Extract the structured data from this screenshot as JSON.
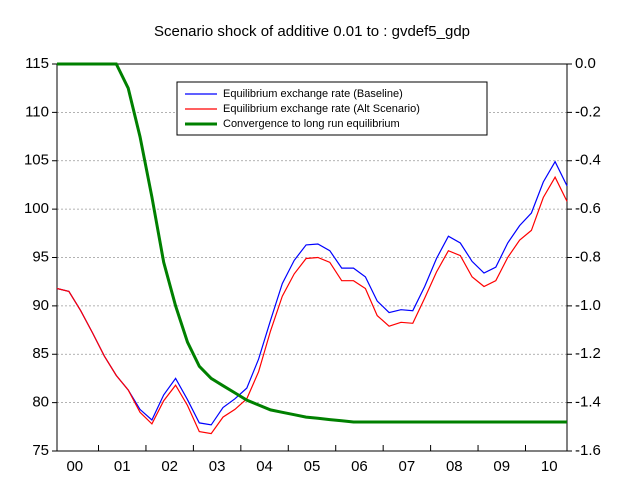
{
  "chart_data": {
    "type": "line",
    "title": "Scenario shock of additive 0.01 to : gvdef5_gdp",
    "categories": [
      "00",
      null,
      null,
      null,
      "01",
      null,
      null,
      null,
      "02",
      null,
      null,
      null,
      "03",
      null,
      null,
      null,
      "04",
      null,
      null,
      null,
      "05",
      null,
      null,
      null,
      "06",
      null,
      null,
      null,
      "07",
      null,
      null,
      null,
      "08",
      null,
      null,
      null,
      "09",
      null,
      null,
      null,
      "10",
      null,
      null,
      null
    ],
    "series": [
      {
        "name": "Equilibrium exchange rate (Baseline)",
        "color": "#0000ff",
        "values": [
          91.8,
          91.5,
          89.5,
          87.2,
          84.8,
          82.8,
          81.3,
          79.3,
          78.2,
          80.8,
          82.5,
          80.3,
          77.9,
          77.7,
          79.5,
          80.4,
          81.5,
          84.5,
          88.5,
          92.3,
          94.7,
          96.3,
          96.4,
          95.7,
          93.9,
          93.9,
          93.0,
          90.5,
          89.3,
          89.6,
          89.5,
          92.0,
          94.9,
          97.2,
          96.5,
          94.6,
          93.4,
          94.0,
          96.5,
          98.3,
          99.6,
          102.8,
          104.9,
          102.4
        ]
      },
      {
        "name": "Equilibrium exchange rate (Alt Scenario)",
        "color": "#ff0000",
        "values": [
          91.8,
          91.5,
          89.5,
          87.2,
          84.8,
          82.8,
          81.3,
          79.0,
          77.8,
          80.2,
          81.8,
          79.7,
          77.0,
          76.8,
          78.5,
          79.3,
          80.4,
          83.2,
          87.4,
          91.0,
          93.3,
          94.9,
          95.0,
          94.5,
          92.6,
          92.6,
          91.8,
          89.0,
          87.9,
          88.3,
          88.2,
          90.8,
          93.5,
          95.7,
          95.2,
          93.0,
          92.0,
          92.6,
          95.0,
          96.8,
          97.8,
          101.2,
          103.3,
          100.8
        ]
      },
      {
        "name": "Convergence to long run equilibrium",
        "color": "#008000",
        "axis": "y2",
        "values": [
          0,
          0,
          0,
          0,
          0,
          0,
          -0.1,
          -0.3,
          -0.55,
          -0.82,
          -1.0,
          -1.15,
          -1.25,
          -1.3,
          -1.33,
          -1.36,
          -1.39,
          -1.41,
          -1.43,
          -1.44,
          -1.45,
          -1.46,
          -1.465,
          -1.47,
          -1.475,
          -1.48,
          -1.48,
          -1.48,
          -1.48,
          -1.48,
          -1.48,
          -1.48,
          -1.48,
          -1.48,
          -1.48,
          -1.48,
          -1.48,
          -1.48,
          -1.48,
          -1.48,
          -1.48,
          -1.48,
          -1.48,
          -1.48
        ]
      }
    ],
    "ylim": [
      75,
      115
    ],
    "yticks": [
      75,
      80,
      85,
      90,
      95,
      100,
      105,
      110,
      115
    ],
    "y2lim": [
      -1.6,
      0
    ],
    "y2ticks": [
      {
        "value": 0,
        "label": "0.0"
      },
      -0.2,
      -0.4,
      -0.6,
      -0.8,
      {
        "value": -1,
        "label": "-1.0"
      },
      -1.2,
      -1.4,
      -1.6
    ],
    "grid": true,
    "legend": "top"
  }
}
